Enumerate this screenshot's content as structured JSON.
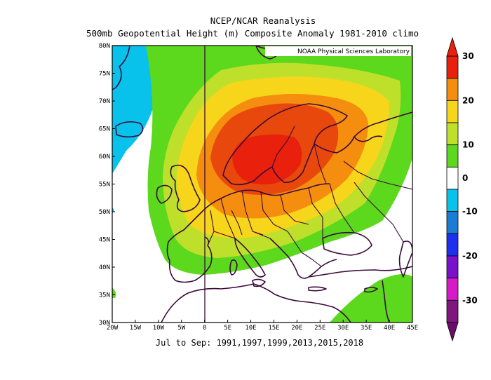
{
  "title_line1": "NCEP/NCAR Reanalysis",
  "title_line2": "500mb Geopotential Height (m) Composite Anomaly 1981-2010 climo",
  "credit": "NOAA Physical Sciences Laboratory",
  "subtitle": "Jul to Sep: 1991,1997,1999,2013,2015,2018",
  "lon_ticks": [
    "20W",
    "15W",
    "10W",
    "5W",
    "0",
    "5E",
    "10E",
    "15E",
    "20E",
    "25E",
    "30E",
    "35E",
    "40E",
    "45E"
  ],
  "lat_ticks": [
    "30N",
    "35N",
    "40N",
    "45N",
    "50N",
    "55N",
    "60N",
    "65N",
    "70N",
    "75N",
    "80N"
  ],
  "colorbar": {
    "ticks": [
      "30",
      "20",
      "10",
      "0",
      "-10",
      "-20",
      "-30"
    ],
    "bins": [
      {
        "range": "25 to 30",
        "color": "#e8200c"
      },
      {
        "range": "20 to 25",
        "color": "#f58d0f"
      },
      {
        "range": "15 to 20",
        "color": "#f7d51a"
      },
      {
        "range": "10 to 15",
        "color": "#bfe02a"
      },
      {
        "range": "5 to 10",
        "color": "#5cd81d"
      },
      {
        "range": "-5 to 5",
        "color": "#ffffff"
      },
      {
        "range": "-10 to -5",
        "color": "#08c2ec"
      },
      {
        "range": "-15 to -10",
        "color": "#1a7cd2"
      },
      {
        "range": "-20 to -15",
        "color": "#1e2ff0"
      },
      {
        "range": "-25 to -20",
        "color": "#7a12cc"
      },
      {
        "range": "-30 to -25",
        "color": "#d61ac8"
      },
      {
        "range": "below -30",
        "color": "#7f177f"
      }
    ],
    "over_color": "#e8200c",
    "under_color": "#6a0d6a"
  },
  "colors": {
    "land_outline": "#3a0a3a",
    "anomaly_max": "#e8200c"
  }
}
